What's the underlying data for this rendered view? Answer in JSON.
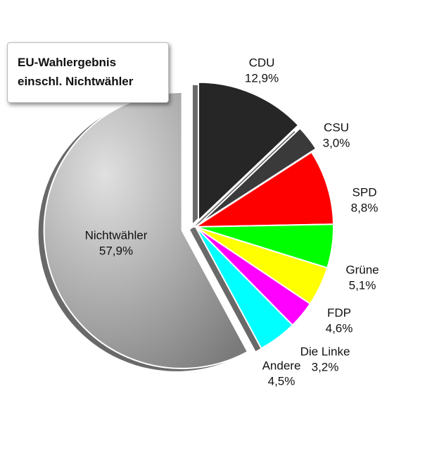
{
  "chart_data": {
    "type": "pie",
    "title": "EU-Wahlergebnis einschl. Nichtwähler",
    "categories": [
      "CDU",
      "CSU",
      "SPD",
      "Grüne",
      "FDP",
      "Die Linke",
      "Andere",
      "Nichtwähler"
    ],
    "values": [
      12.9,
      3.0,
      8.8,
      5.1,
      4.6,
      3.2,
      4.5,
      57.9
    ],
    "value_labels": [
      "12,9%",
      "3,0%",
      "8,8%",
      "5,1%",
      "4,6%",
      "3,2%",
      "4,5%",
      "57,9%"
    ],
    "colors": [
      "#262626",
      "#3a3a3a",
      "#ff0000",
      "#00ff00",
      "#ffff00",
      "#ff00ff",
      "#00ffff",
      "#a9a9a9"
    ]
  }
}
